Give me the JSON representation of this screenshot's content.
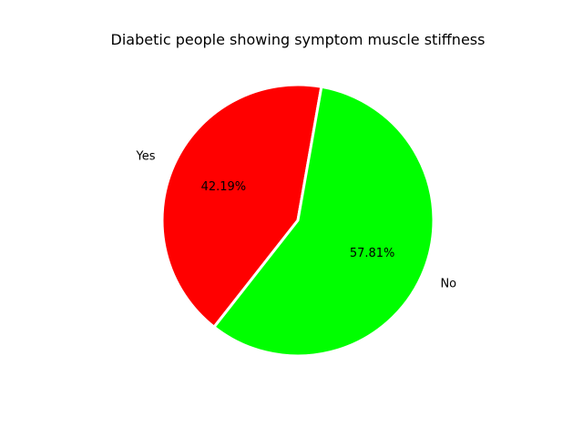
{
  "chart_data": {
    "type": "pie",
    "title": "Diabetic people showing symptom muscle stiffness",
    "slices": [
      {
        "label": "Yes",
        "value": 42.19,
        "pct_label": "42.19%",
        "color": "#ff0000"
      },
      {
        "label": "No",
        "value": 57.81,
        "pct_label": "57.81%",
        "color": "#00ff00"
      }
    ],
    "edge_color": "#ffffff",
    "legend": "none"
  }
}
